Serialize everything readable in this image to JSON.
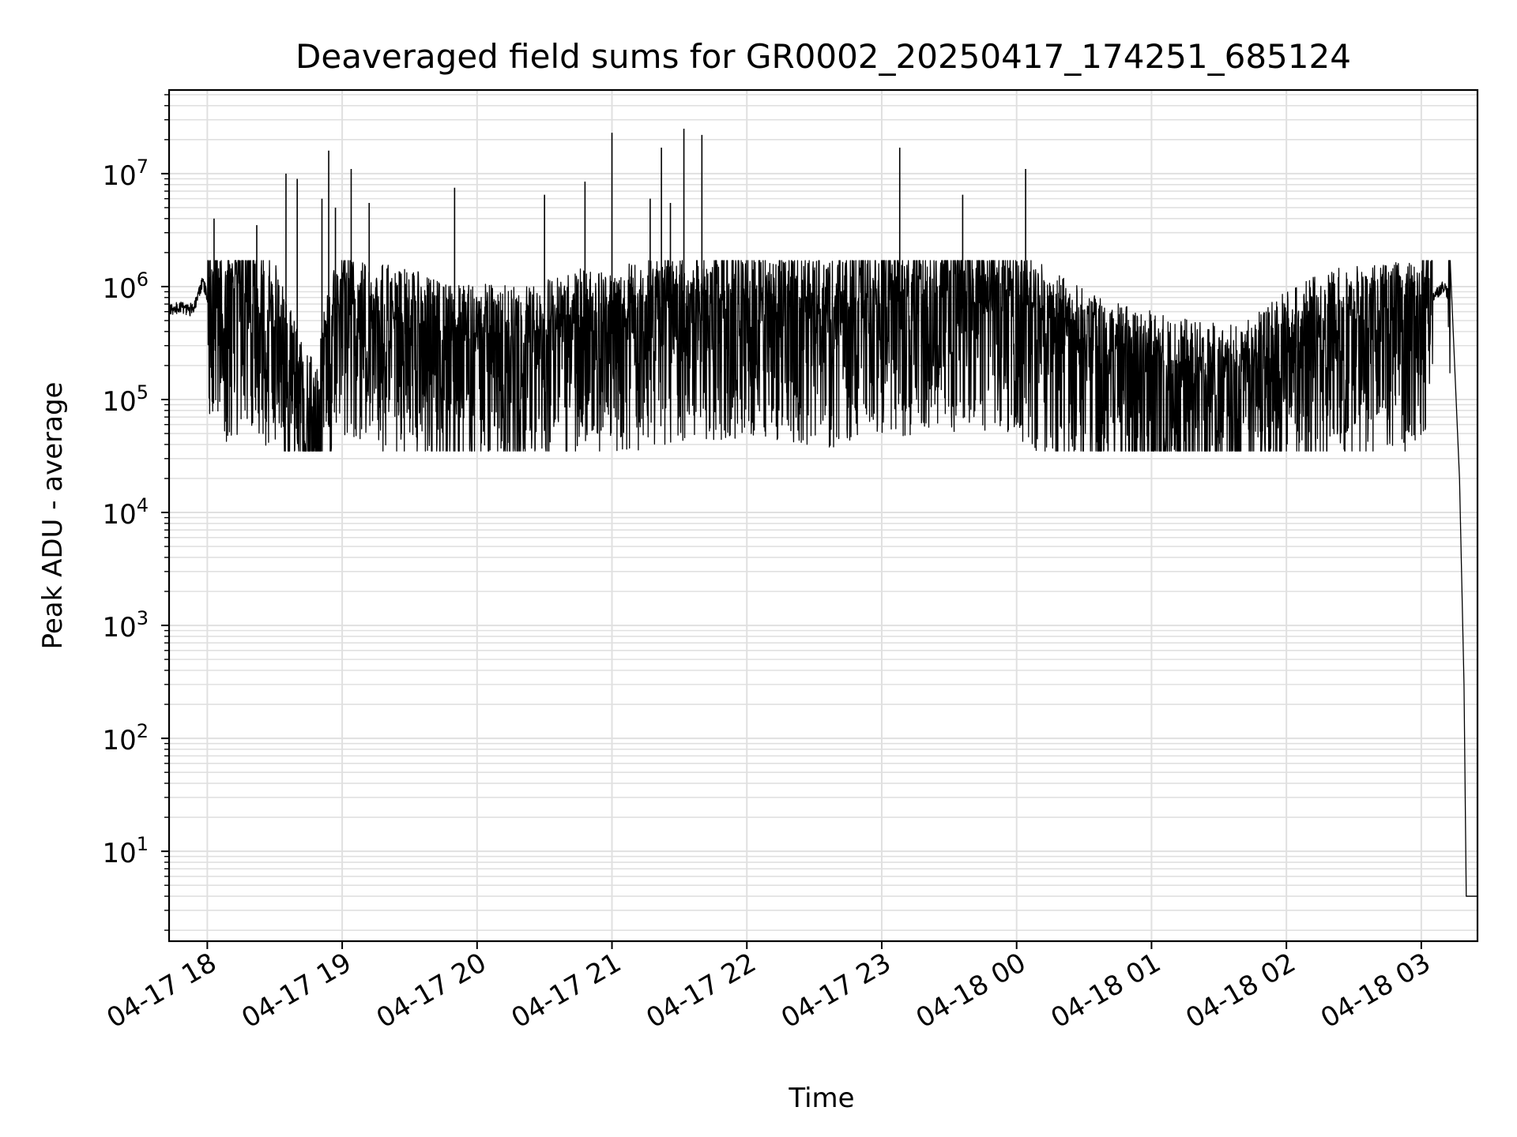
{
  "chart_data": {
    "type": "line",
    "title": "Deaveraged field sums for GR0002_20250417_174251_685124",
    "xlabel": "Time",
    "ylabel": "Peak ADU - average",
    "yscale": "log",
    "ylim": [
      1.6,
      55000000
    ],
    "xlim": [
      "04-17 17:43",
      "04-18 03:25"
    ],
    "grid": true,
    "minor_grid": true,
    "line_color": "#000000",
    "grid_color": "#e0e0e0",
    "x_ticks": [
      "04-17 18",
      "04-17 19",
      "04-17 20",
      "04-17 21",
      "04-17 22",
      "04-17 23",
      "04-18 00",
      "04-18 01",
      "04-18 02",
      "04-18 03"
    ],
    "y_ticks": [
      {
        "base": "10",
        "exp": "1",
        "value": 10
      },
      {
        "base": "10",
        "exp": "2",
        "value": 100
      },
      {
        "base": "10",
        "exp": "3",
        "value": 1000
      },
      {
        "base": "10",
        "exp": "4",
        "value": 10000
      },
      {
        "base": "10",
        "exp": "5",
        "value": 100000
      },
      {
        "base": "10",
        "exp": "6",
        "value": 1000000
      },
      {
        "base": "10",
        "exp": "7",
        "value": 10000000
      }
    ],
    "series": [
      {
        "x": [
          "04-17 17:43",
          "04-17 17:48",
          "04-17 17:52",
          "04-17 17:55",
          "04-17 17:58",
          "04-17 18:00",
          "04-17 18:03",
          "04-17 18:06",
          "04-17 18:10",
          "04-17 18:15",
          "04-17 18:20",
          "04-17 18:25",
          "04-17 18:30",
          "04-17 18:35",
          "04-17 18:40",
          "04-17 18:45",
          "04-17 18:48",
          "04-17 18:52",
          "04-17 18:56",
          "04-17 19:00",
          "04-17 19:10",
          "04-17 19:20",
          "04-17 19:30",
          "04-17 19:40",
          "04-17 19:50",
          "04-17 20:00",
          "04-17 20:15",
          "04-17 20:30",
          "04-17 20:45",
          "04-17 21:00",
          "04-17 21:20",
          "04-17 21:40",
          "04-17 22:00",
          "04-17 22:20",
          "04-17 22:40",
          "04-17 23:00",
          "04-17 23:20",
          "04-17 23:40",
          "04-18 00:00",
          "04-18 00:20",
          "04-18 00:40",
          "04-18 01:00",
          "04-18 01:20",
          "04-18 01:40",
          "04-18 02:00",
          "04-18 02:20",
          "04-18 02:40",
          "04-18 03:00",
          "04-18 03:05",
          "04-18 03:10",
          "04-18 03:14",
          "04-18 03:17",
          "04-18 03:19",
          "04-18 03:20",
          "04-18 03:25"
        ],
        "values": [
          600000,
          650000,
          600000,
          700000,
          1100000,
          800000,
          600000,
          550000,
          500000,
          650000,
          700000,
          500000,
          400000,
          200000,
          100000,
          60000,
          55000,
          150000,
          400000,
          500000,
          450000,
          400000,
          350000,
          300000,
          250000,
          280000,
          250000,
          300000,
          350000,
          380000,
          450000,
          500000,
          550000,
          500000,
          450000,
          550000,
          600000,
          650000,
          550000,
          300000,
          180000,
          150000,
          120000,
          110000,
          230000,
          350000,
          380000,
          420000,
          800000,
          1000000,
          700000,
          20000,
          300,
          4,
          4
        ]
      }
    ],
    "spikes": [
      {
        "x": "04-17 18:03",
        "value": 4000000
      },
      {
        "x": "04-17 18:22",
        "value": 3500000
      },
      {
        "x": "04-17 18:35",
        "value": 10000000
      },
      {
        "x": "04-17 18:40",
        "value": 9000000
      },
      {
        "x": "04-17 18:51",
        "value": 6000000
      },
      {
        "x": "04-17 18:54",
        "value": 16000000
      },
      {
        "x": "04-17 18:57",
        "value": 5000000
      },
      {
        "x": "04-17 19:04",
        "value": 11000000
      },
      {
        "x": "04-17 19:12",
        "value": 5500000
      },
      {
        "x": "04-17 19:50",
        "value": 7500000
      },
      {
        "x": "04-17 20:30",
        "value": 6500000
      },
      {
        "x": "04-17 20:48",
        "value": 8500000
      },
      {
        "x": "04-17 21:00",
        "value": 23000000
      },
      {
        "x": "04-17 21:17",
        "value": 6000000
      },
      {
        "x": "04-17 21:22",
        "value": 17000000
      },
      {
        "x": "04-17 21:26",
        "value": 5500000
      },
      {
        "x": "04-17 21:32",
        "value": 25000000
      },
      {
        "x": "04-17 21:40",
        "value": 22000000
      },
      {
        "x": "04-17 23:08",
        "value": 17000000
      },
      {
        "x": "04-17 23:36",
        "value": 6500000
      },
      {
        "x": "04-18 00:04",
        "value": 11000000
      }
    ]
  }
}
